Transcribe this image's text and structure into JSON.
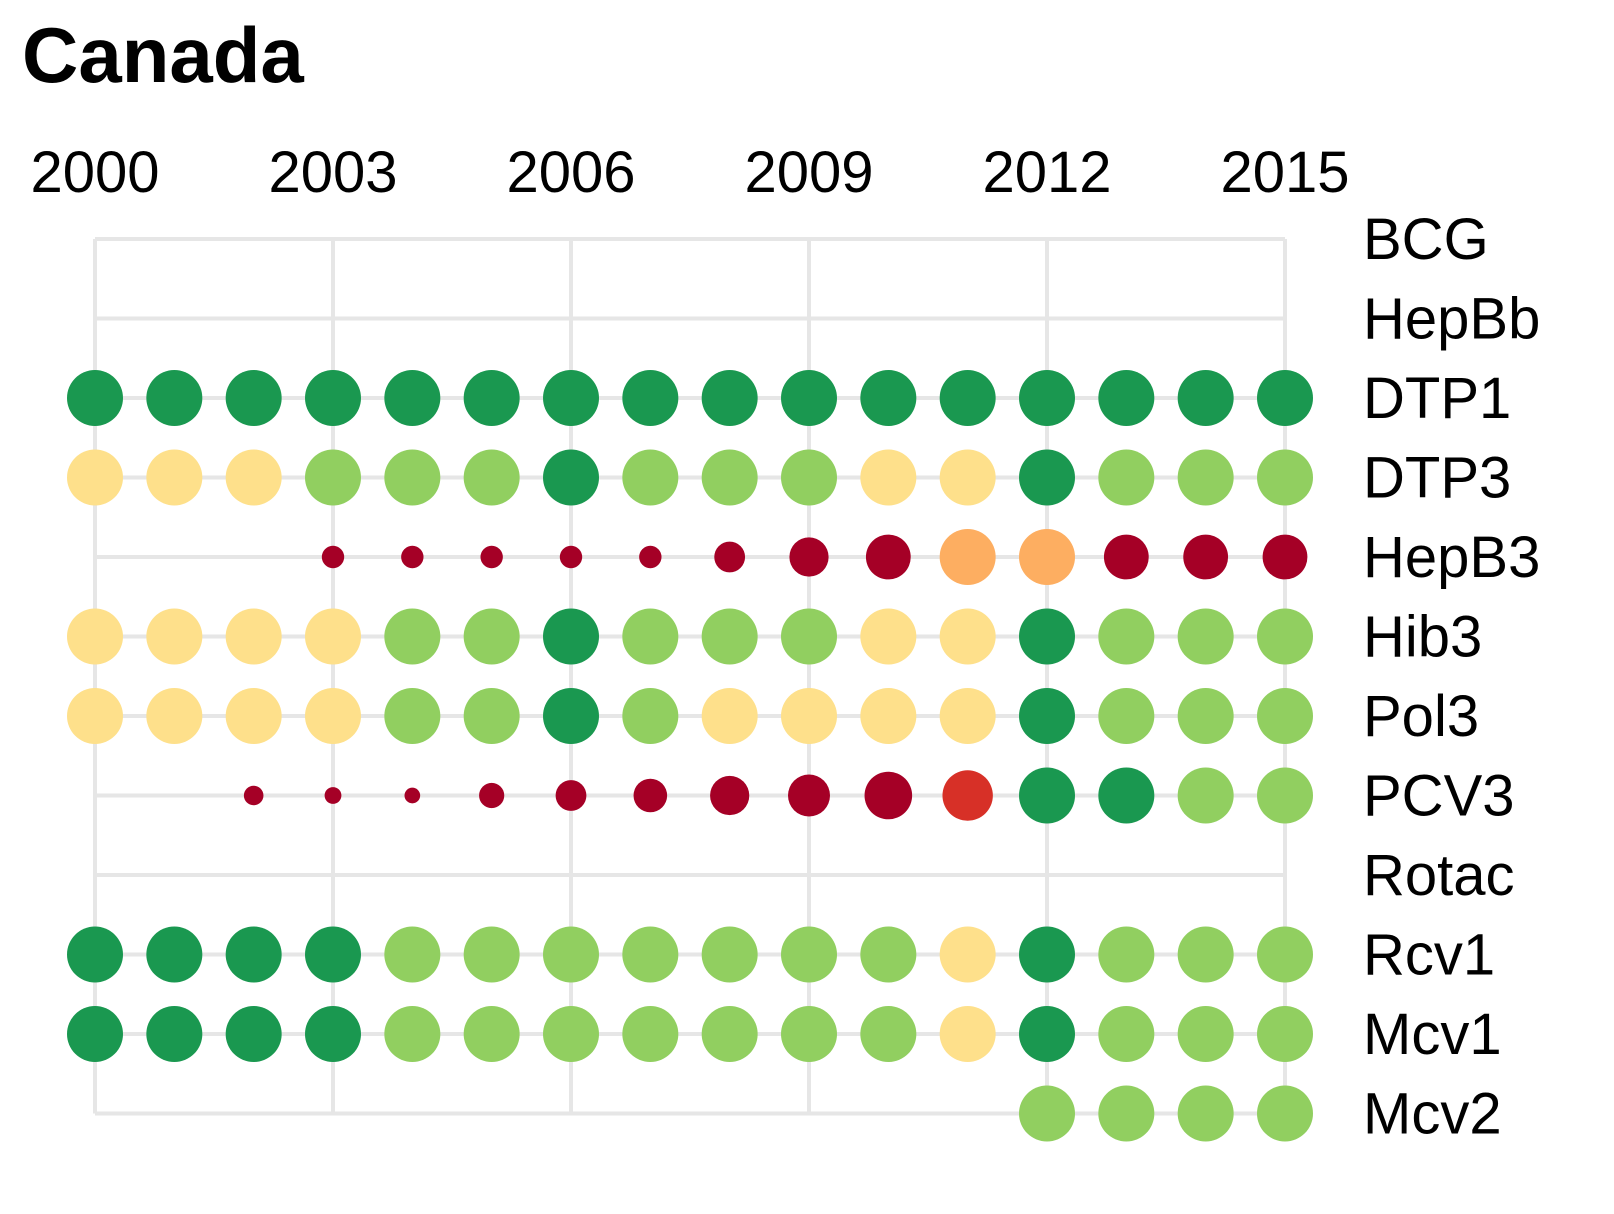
{
  "chart_data": {
    "type": "scatter",
    "title": "Canada",
    "xlabel": "",
    "ylabel": "",
    "x_ticks": [
      "2000",
      "2003",
      "2006",
      "2009",
      "2012",
      "2015"
    ],
    "xlim": [
      2000,
      2015
    ],
    "grid": true,
    "legend": "none",
    "x": [
      2000,
      2001,
      2002,
      2003,
      2004,
      2005,
      2006,
      2007,
      2008,
      2009,
      2010,
      2011,
      2012,
      2013,
      2014,
      2015
    ],
    "categories": [
      "BCG",
      "HepBb",
      "DTP1",
      "DTP3",
      "HepB3",
      "Hib3",
      "Pol3",
      "PCV3",
      "Rotac",
      "Rcv1",
      "Mcv1",
      "Mcv2"
    ],
    "level_colors": {
      "1": "#a50026",
      "2": "#d73027",
      "3": "#fdae61",
      "4": "#fee08b",
      "5": "#91cf60",
      "6": "#1a9850"
    },
    "series": [
      {
        "name": "BCG",
        "start": null,
        "levels": [],
        "sizes": []
      },
      {
        "name": "HepBb",
        "start": null,
        "levels": [],
        "sizes": []
      },
      {
        "name": "DTP1",
        "start": 2000,
        "levels": [
          6,
          6,
          6,
          6,
          6,
          6,
          6,
          6,
          6,
          6,
          6,
          6,
          6,
          6,
          6,
          6
        ],
        "sizes": [
          1,
          1,
          1,
          1,
          1,
          1,
          1,
          1,
          1,
          1,
          1,
          1,
          1,
          1,
          1,
          1
        ]
      },
      {
        "name": "DTP3",
        "start": 2000,
        "levels": [
          4,
          4,
          4,
          5,
          5,
          5,
          6,
          5,
          5,
          5,
          4,
          4,
          6,
          5,
          5,
          5
        ],
        "sizes": [
          1,
          1,
          1,
          1,
          1,
          1,
          1,
          1,
          1,
          1,
          1,
          1,
          1,
          1,
          1,
          1
        ]
      },
      {
        "name": "HepB3",
        "start": 2003,
        "levels": [
          1,
          1,
          1,
          1,
          1,
          1,
          1,
          1,
          3,
          3,
          1,
          1,
          1
        ],
        "sizes": [
          0.4,
          0.4,
          0.4,
          0.4,
          0.4,
          0.55,
          0.7,
          0.8,
          1,
          1,
          0.8,
          0.8,
          0.8
        ]
      },
      {
        "name": "Hib3",
        "start": 2000,
        "levels": [
          4,
          4,
          4,
          4,
          5,
          5,
          6,
          5,
          5,
          5,
          4,
          4,
          6,
          5,
          5,
          5
        ],
        "sizes": [
          1,
          1,
          1,
          1,
          1,
          1,
          1,
          1,
          1,
          1,
          1,
          1,
          1,
          1,
          1,
          1
        ]
      },
      {
        "name": "Pol3",
        "start": 2000,
        "levels": [
          4,
          4,
          4,
          4,
          5,
          5,
          6,
          5,
          4,
          4,
          4,
          4,
          6,
          5,
          5,
          5
        ],
        "sizes": [
          1,
          1,
          1,
          1,
          1,
          1,
          1,
          1,
          1,
          1,
          1,
          1,
          1,
          1,
          1,
          1
        ]
      },
      {
        "name": "PCV3",
        "start": 2002,
        "levels": [
          1,
          1,
          1,
          1,
          1,
          1,
          1,
          1,
          1,
          2,
          6,
          6,
          5,
          5
        ],
        "sizes": [
          0.35,
          0.3,
          0.28,
          0.45,
          0.55,
          0.6,
          0.7,
          0.75,
          0.85,
          0.9,
          1,
          1,
          1,
          1
        ]
      },
      {
        "name": "Rotac",
        "start": null,
        "levels": [],
        "sizes": []
      },
      {
        "name": "Rcv1",
        "start": 2000,
        "levels": [
          6,
          6,
          6,
          6,
          5,
          5,
          5,
          5,
          5,
          5,
          5,
          4,
          6,
          5,
          5,
          5
        ],
        "sizes": [
          1,
          1,
          1,
          1,
          1,
          1,
          1,
          1,
          1,
          1,
          1,
          1,
          1,
          1,
          1,
          1
        ]
      },
      {
        "name": "Mcv1",
        "start": 2000,
        "levels": [
          6,
          6,
          6,
          6,
          5,
          5,
          5,
          5,
          5,
          5,
          5,
          4,
          6,
          5,
          5,
          5
        ],
        "sizes": [
          1,
          1,
          1,
          1,
          1,
          1,
          1,
          1,
          1,
          1,
          1,
          1,
          1,
          1,
          1,
          1
        ]
      },
      {
        "name": "Mcv2",
        "start": 2012,
        "levels": [
          5,
          5,
          5,
          5
        ],
        "sizes": [
          1,
          1,
          1,
          1
        ]
      }
    ]
  }
}
